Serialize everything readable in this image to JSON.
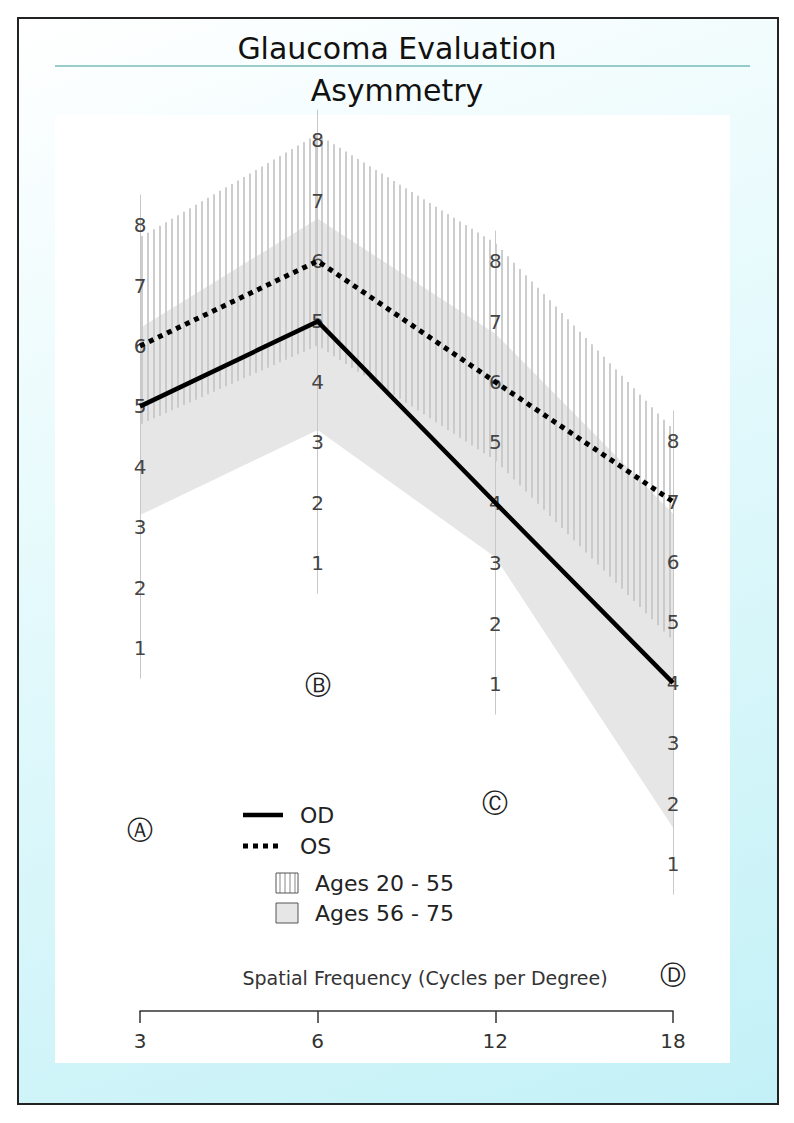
{
  "chart_data": {
    "type": "line",
    "title": "Glaucoma Evaluation",
    "subtitle": "Asymmetry",
    "x_label": "Spatial Frequency (Cycles per Degree)",
    "categories": [
      "3",
      "6",
      "12",
      "18"
    ],
    "column_labels": [
      "Ⓐ",
      "Ⓑ",
      "Ⓒ",
      "Ⓓ"
    ],
    "ylim": [
      0.5,
      8.5
    ],
    "yticks": [
      1,
      2,
      3,
      4,
      5,
      6,
      7,
      8
    ],
    "series": [
      {
        "name": "OD",
        "color": "#000000",
        "line_style": "solid",
        "values": [
          5,
          5,
          4,
          4
        ]
      },
      {
        "name": "OS",
        "color": "#000000",
        "line_style": "dotted",
        "values": [
          6,
          6,
          6,
          7
        ]
      }
    ],
    "bands": [
      {
        "name": "Ages 20 - 55",
        "color": "#c4c4c4",
        "lower": [
          4.7,
          4.6,
          4.7,
          4.7
        ],
        "upper": [
          7.8,
          8.1,
          8.3,
          8.2
        ]
      },
      {
        "name": "Ages 56 - 75",
        "color": "#e6e6e6",
        "lower": [
          3.2,
          3.2,
          3.1,
          1.6
        ],
        "upper": [
          6.3,
          6.7,
          6.8,
          6.8
        ]
      }
    ]
  }
}
